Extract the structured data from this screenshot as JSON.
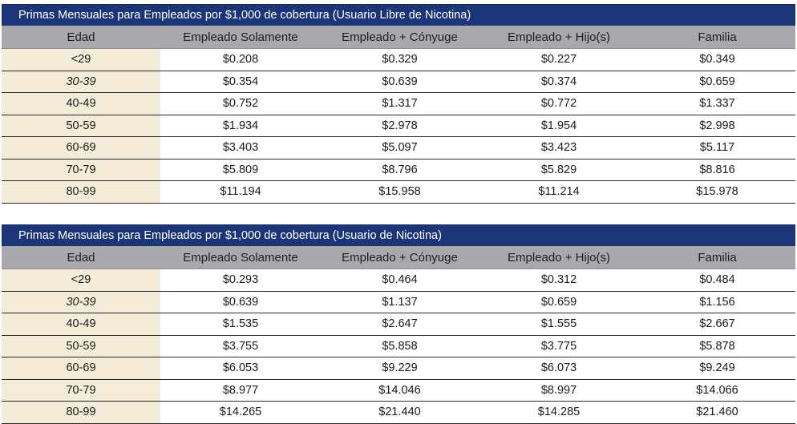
{
  "tables": [
    {
      "title": "Primas Mensuales para Empleados por $1,000 de cobertura (Usuario Libre de Nicotina)",
      "headers": [
        "Edad",
        "Empleado Solamente",
        "Empleado + Cónyuge",
        "Empleado + Hijo(s)",
        "Familia"
      ],
      "rows": [
        [
          "<29",
          "$0.208",
          "$0.329",
          "$0.227",
          "$0.349"
        ],
        [
          "30-39",
          "$0.354",
          "$0.639",
          "$0.374",
          "$0.659"
        ],
        [
          "40-49",
          "$0.752",
          "$1.317",
          "$0.772",
          "$1.337"
        ],
        [
          "50-59",
          "$1.934",
          "$2.978",
          "$1.954",
          "$2.998"
        ],
        [
          "60-69",
          "$3.403",
          "$5.097",
          "$3.423",
          "$5.117"
        ],
        [
          "70-79",
          "$5.809",
          "$8.796",
          "$5.829",
          "$8.816"
        ],
        [
          "80-99",
          "$11.194",
          "$15.958",
          "$11.214",
          "$15.978"
        ]
      ]
    },
    {
      "title": "Primas Mensuales para Empleados por $1,000 de cobertura (Usuario de Nicotina)",
      "headers": [
        "Edad",
        "Empleado Solamente",
        "Empleado + Cónyuge",
        "Empleado + Hijo(s)",
        "Familia"
      ],
      "rows": [
        [
          "<29",
          "$0.293",
          "$0.464",
          "$0.312",
          "$0.484"
        ],
        [
          "30-39",
          "$0.639",
          "$1.137",
          "$0.659",
          "$1.156"
        ],
        [
          "40-49",
          "$1.535",
          "$2.647",
          "$1.555",
          "$2.667"
        ],
        [
          "50-59",
          "$3.755",
          "$5.858",
          "$3.775",
          "$5.878"
        ],
        [
          "60-69",
          "$6.053",
          "$9.229",
          "$6.073",
          "$9.249"
        ],
        [
          "70-79",
          "$8.977",
          "$14.046",
          "$8.997",
          "$14.066"
        ],
        [
          "80-99",
          "$14.265",
          "$21.440",
          "$14.285",
          "$21.460"
        ]
      ]
    }
  ],
  "colors": {
    "title_bar": "#1c3577",
    "header_bar": "#a7a9ac",
    "age_column": "#f4ecd8"
  }
}
